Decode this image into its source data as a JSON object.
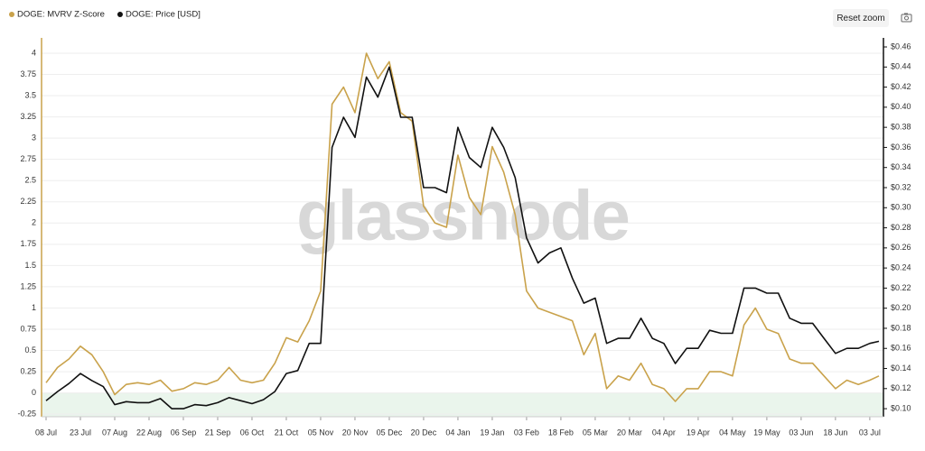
{
  "toolbar": {
    "reset_zoom": "Reset zoom"
  },
  "chart_data": {
    "type": "line",
    "watermark": "glassnode",
    "x": [
      "08 Jul",
      "13 Jul",
      "18 Jul",
      "23 Jul",
      "28 Jul",
      "02 Aug",
      "07 Aug",
      "12 Aug",
      "17 Aug",
      "22 Aug",
      "27 Aug",
      "01 Sep",
      "06 Sep",
      "11 Sep",
      "16 Sep",
      "21 Sep",
      "26 Sep",
      "01 Oct",
      "06 Oct",
      "11 Oct",
      "16 Oct",
      "21 Oct",
      "26 Oct",
      "31 Oct",
      "05 Nov",
      "10 Nov",
      "15 Nov",
      "20 Nov",
      "25 Nov",
      "30 Nov",
      "05 Dec",
      "10 Dec",
      "15 Dec",
      "20 Dec",
      "25 Dec",
      "30 Dec",
      "04 Jan",
      "09 Jan",
      "14 Jan",
      "19 Jan",
      "24 Jan",
      "29 Jan",
      "03 Feb",
      "08 Feb",
      "13 Feb",
      "18 Feb",
      "23 Feb",
      "28 Feb",
      "05 Mar",
      "10 Mar",
      "15 Mar",
      "20 Mar",
      "25 Mar",
      "30 Mar",
      "04 Apr",
      "09 Apr",
      "14 Apr",
      "19 Apr",
      "24 Apr",
      "29 Apr",
      "04 May",
      "09 May",
      "14 May",
      "19 May",
      "24 May",
      "29 May",
      "03 Jun",
      "08 Jun",
      "13 Jun",
      "18 Jun",
      "23 Jun",
      "28 Jun",
      "03 Jul",
      "07 Jul"
    ],
    "xticks": [
      "08 Jul",
      "23 Jul",
      "07 Aug",
      "22 Aug",
      "06 Sep",
      "21 Sep",
      "06 Oct",
      "21 Oct",
      "05 Nov",
      "20 Nov",
      "05 Dec",
      "20 Dec",
      "04 Jan",
      "19 Jan",
      "03 Feb",
      "18 Feb",
      "05 Mar",
      "20 Mar",
      "04 Apr",
      "19 Apr",
      "04 May",
      "19 May",
      "03 Jun",
      "18 Jun",
      "03 Jul"
    ],
    "series": [
      {
        "name": "DOGE: MVRV Z-Score",
        "color": "#c9a24b",
        "axis": "y",
        "values": [
          0.12,
          0.3,
          0.4,
          0.55,
          0.45,
          0.25,
          -0.02,
          0.1,
          0.12,
          0.1,
          0.15,
          0.02,
          0.05,
          0.12,
          0.1,
          0.15,
          0.3,
          0.15,
          0.12,
          0.15,
          0.35,
          0.65,
          0.6,
          0.85,
          1.2,
          3.4,
          3.6,
          3.3,
          4.0,
          3.7,
          3.9,
          3.3,
          3.2,
          2.2,
          2.0,
          1.95,
          2.8,
          2.3,
          2.1,
          2.9,
          2.6,
          2.1,
          1.2,
          1.0,
          0.95,
          0.9,
          0.85,
          0.45,
          0.7,
          0.05,
          0.2,
          0.15,
          0.35,
          0.1,
          0.05,
          -0.1,
          0.05,
          0.05,
          0.25,
          0.25,
          0.2,
          0.8,
          1.0,
          0.75,
          0.7,
          0.4,
          0.35,
          0.35,
          0.2,
          0.05,
          0.15,
          0.1,
          0.15,
          0.2
        ]
      },
      {
        "name": "DOGE: Price [USD]",
        "color": "#111111",
        "axis": "y2",
        "values": [
          0.108,
          0.117,
          0.125,
          0.135,
          0.128,
          0.122,
          0.104,
          0.107,
          0.106,
          0.106,
          0.11,
          0.1,
          0.1,
          0.104,
          0.103,
          0.106,
          0.111,
          0.108,
          0.105,
          0.109,
          0.117,
          0.135,
          0.138,
          0.165,
          0.165,
          0.36,
          0.39,
          0.37,
          0.43,
          0.41,
          0.44,
          0.39,
          0.39,
          0.32,
          0.32,
          0.315,
          0.38,
          0.35,
          0.34,
          0.38,
          0.36,
          0.33,
          0.27,
          0.245,
          0.255,
          0.26,
          0.23,
          0.205,
          0.21,
          0.165,
          0.17,
          0.17,
          0.19,
          0.17,
          0.165,
          0.145,
          0.16,
          0.16,
          0.178,
          0.175,
          0.175,
          0.22,
          0.22,
          0.215,
          0.215,
          0.19,
          0.185,
          0.185,
          0.17,
          0.155,
          0.16,
          0.16,
          0.165,
          0.167
        ]
      }
    ],
    "ylim": [
      -0.28,
      4.18
    ],
    "yticks": [
      -0.25,
      0,
      0.25,
      0.5,
      0.75,
      1,
      1.25,
      1.5,
      1.75,
      2,
      2.25,
      2.5,
      2.75,
      3,
      3.25,
      3.5,
      3.75,
      4
    ],
    "y2lim": [
      0.092,
      0.469
    ],
    "y2ticks": [
      {
        "value": 0.1,
        "label": "$0.10"
      },
      {
        "value": 0.12,
        "label": "$0.12"
      },
      {
        "value": 0.14,
        "label": "$0.14"
      },
      {
        "value": 0.16,
        "label": "$0.16"
      },
      {
        "value": 0.18,
        "label": "$0.18"
      },
      {
        "value": 0.2,
        "label": "$0.20"
      },
      {
        "value": 0.22,
        "label": "$0.22"
      },
      {
        "value": 0.24,
        "label": "$0.24"
      },
      {
        "value": 0.26,
        "label": "$0.26"
      },
      {
        "value": 0.28,
        "label": "$0.28"
      },
      {
        "value": 0.3,
        "label": "$0.30"
      },
      {
        "value": 0.32,
        "label": "$0.32"
      },
      {
        "value": 0.34,
        "label": "$0.34"
      },
      {
        "value": 0.36,
        "label": "$0.36"
      },
      {
        "value": 0.38,
        "label": "$0.38"
      },
      {
        "value": 0.4,
        "label": "$0.40"
      },
      {
        "value": 0.42,
        "label": "$0.42"
      },
      {
        "value": 0.44,
        "label": "$0.44"
      },
      {
        "value": 0.46,
        "label": "$0.46"
      }
    ],
    "grid": true
  }
}
